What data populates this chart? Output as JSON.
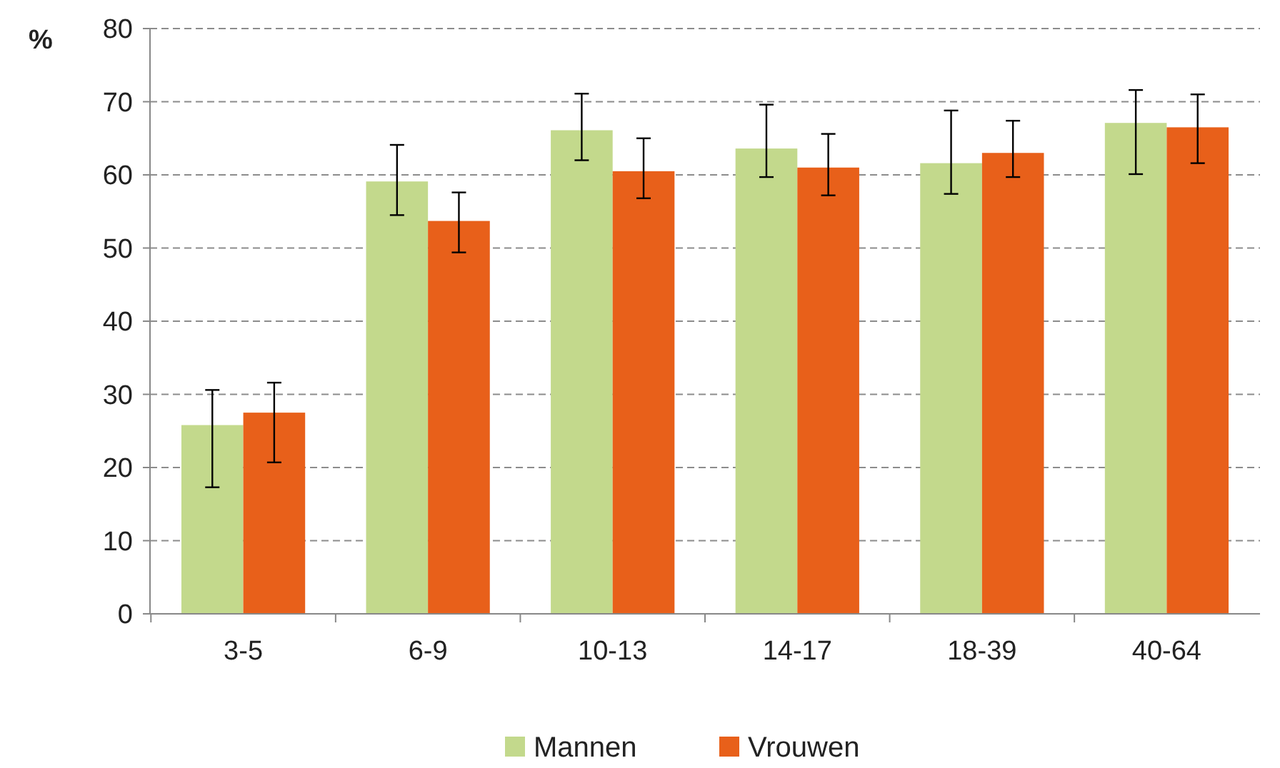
{
  "chart_data": {
    "type": "bar",
    "ylabel": "%",
    "categories": [
      "3-5",
      "6-9",
      "10-13",
      "14-17",
      "18-39",
      "40-64"
    ],
    "series": [
      {
        "name": "Mannen",
        "color": "#c3d98c",
        "values": [
          25.8,
          59.1,
          66.1,
          63.6,
          61.6,
          67.1
        ],
        "errors": [
          [
            17.3,
            30.6
          ],
          [
            54.5,
            64.1
          ],
          [
            62,
            71.1
          ],
          [
            59.7,
            69.6
          ],
          [
            57.4,
            68.8
          ],
          [
            60.1,
            71.6
          ]
        ]
      },
      {
        "name": "Vrouwen",
        "color": "#e8601a",
        "values": [
          27.5,
          53.7,
          60.5,
          61.0,
          63.0,
          66.5
        ],
        "errors": [
          [
            20.7,
            31.6
          ],
          [
            49.4,
            57.6
          ],
          [
            56.8,
            65
          ],
          [
            57.2,
            65.6
          ],
          [
            59.7,
            67.4
          ],
          [
            61.6,
            71.0
          ]
        ]
      }
    ],
    "ylim": [
      0,
      80
    ],
    "yticks": [
      0,
      10,
      20,
      30,
      40,
      50,
      60,
      70,
      80
    ],
    "grid": "y",
    "legend": "bottom"
  }
}
